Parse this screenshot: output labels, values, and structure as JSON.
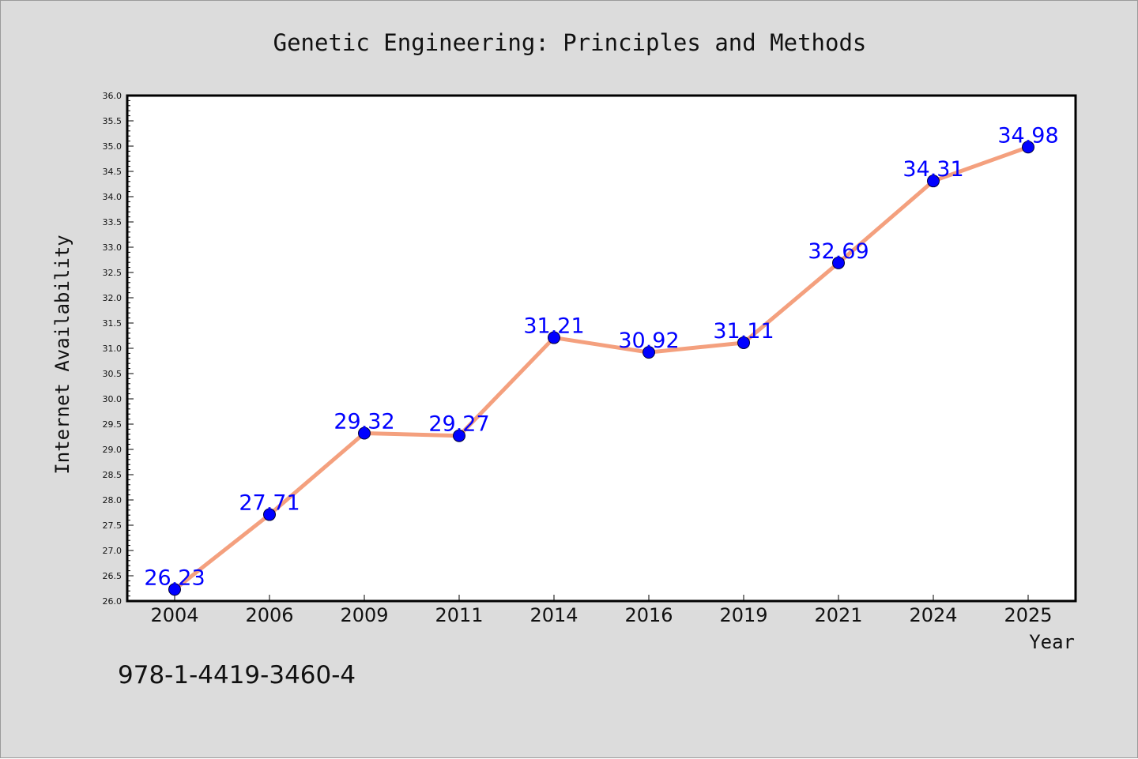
{
  "chart_data": {
    "type": "line",
    "title": "Genetic Engineering: Principles and Methods",
    "xlabel": "Year",
    "ylabel": "Internet Availability",
    "categories": [
      "2004",
      "2006",
      "2009",
      "2011",
      "2014",
      "2016",
      "2019",
      "2021",
      "2024",
      "2025"
    ],
    "series": [
      {
        "values": [
          26.23,
          27.71,
          29.32,
          29.27,
          31.21,
          30.92,
          31.11,
          32.69,
          34.31,
          34.98
        ],
        "labels": [
          "26.23",
          "27.71",
          "29.32",
          "29.27",
          "31.21",
          "30.92",
          "31.11",
          "32.69",
          "34.31",
          "34.98"
        ],
        "line_color": "#f4a07e",
        "marker_color": "#0000ff",
        "marker": "circle"
      }
    ],
    "ylim": [
      26.0,
      36.0
    ],
    "yticks": [
      "26.0",
      "26.5",
      "27.0",
      "27.5",
      "28.0",
      "28.5",
      "29.0",
      "29.5",
      "30.0",
      "30.5",
      "31.0",
      "31.5",
      "32.0",
      "32.5",
      "33.0",
      "33.5",
      "34.0",
      "34.5",
      "35.0",
      "35.5",
      "36.0"
    ],
    "grid": false,
    "legend": "none",
    "label_color": "#0000ff"
  },
  "caption": "978-1-4419-3460-4",
  "colors": {
    "figure_background": "#dcdcdc",
    "plot_background": "#ffffff",
    "axes_frame": "#000000"
  }
}
